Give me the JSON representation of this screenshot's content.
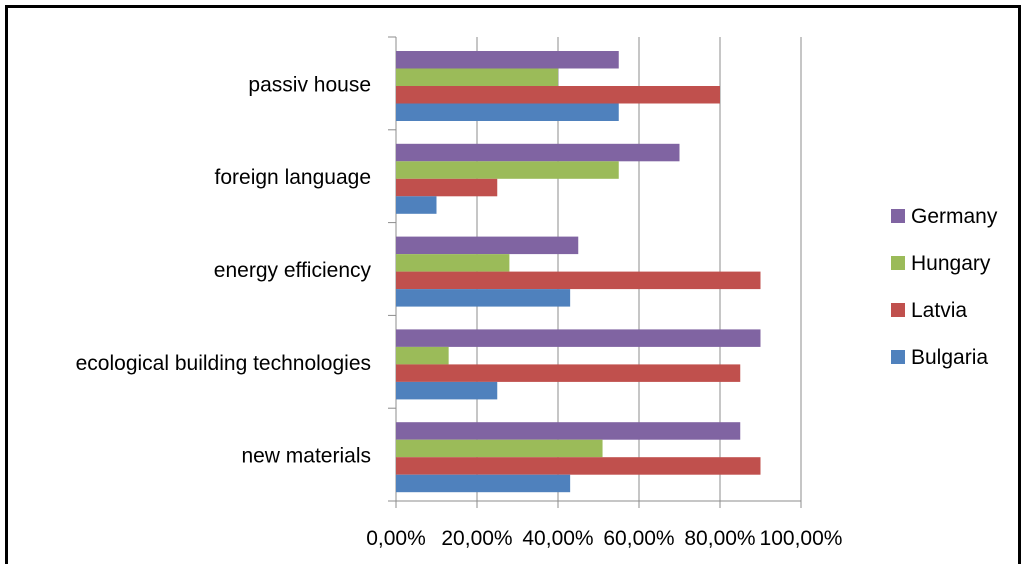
{
  "chart_data": {
    "type": "bar",
    "orientation": "horizontal",
    "categories": [
      "passiv house",
      "foreign language",
      "energy efficiency",
      "ecological building technologies",
      "new materials"
    ],
    "series": [
      {
        "name": "Germany",
        "color": "#8064A2",
        "values": [
          55,
          70,
          45,
          90,
          85
        ]
      },
      {
        "name": "Hungary",
        "color": "#9BBB59",
        "values": [
          40,
          55,
          28,
          13,
          51
        ]
      },
      {
        "name": "Latvia",
        "color": "#C0504D",
        "values": [
          80,
          25,
          90,
          85,
          90
        ]
      },
      {
        "name": "Bulgaria",
        "color": "#4F81BD",
        "values": [
          55,
          10,
          43,
          25,
          43
        ]
      }
    ],
    "xlim": [
      0,
      100
    ],
    "x_ticks": [
      0,
      20,
      40,
      60,
      80,
      100
    ],
    "x_tick_labels": [
      "0,00%",
      "20,00%",
      "40,00%",
      "60,00%",
      "80,00%",
      "100,00%"
    ],
    "grid": "vertical",
    "legend_position": "right",
    "legend_order": [
      "Germany",
      "Hungary",
      "Latvia",
      "Bulgaria"
    ],
    "title": "",
    "xlabel": "",
    "ylabel": ""
  }
}
